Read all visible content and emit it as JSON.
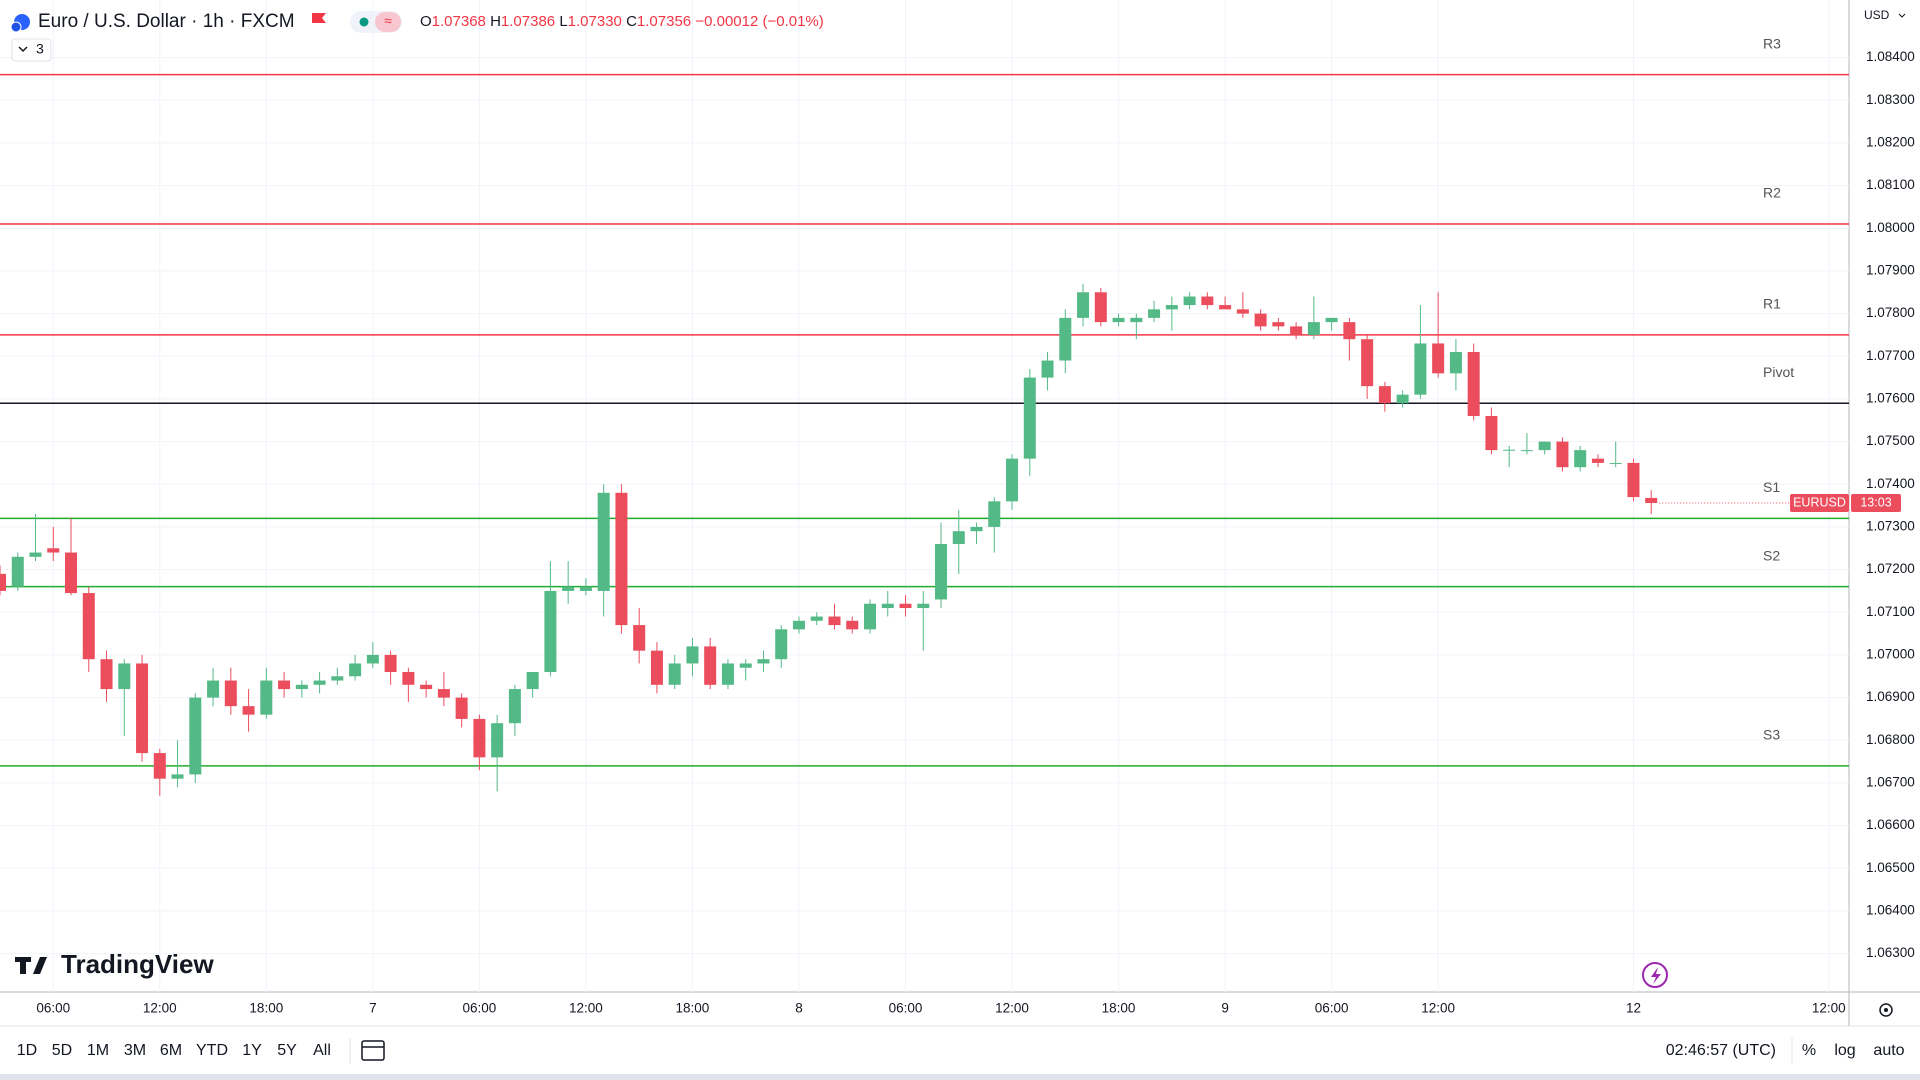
{
  "header": {
    "title": "Euro / U.S. Dollar · 1h · FXCM",
    "indicators": "3",
    "currency": "USD",
    "logo": "TradingView",
    "ohlc": [
      {
        "name": "O",
        "value": 1.07368,
        "label": "1.07368"
      },
      {
        "name": "H",
        "value": 1.07386,
        "label": "1.07386"
      },
      {
        "name": "L",
        "value": 1.0733,
        "label": "1.07330"
      },
      {
        "name": "C",
        "value": 1.07356,
        "label": "1.07356"
      }
    ],
    "change": {
      "value": -0.00012,
      "label": "−0.00012"
    },
    "change_pct": {
      "value": -0.01,
      "label": "(−0.01%)"
    }
  },
  "chart_data": {
    "type": "candlestick",
    "up_color": "#53b987",
    "down_color": "#eb4d5c",
    "grid": true,
    "categories": [
      null,
      null,
      null,
      "06:00",
      null,
      null,
      null,
      null,
      null,
      "12:00",
      null,
      null,
      null,
      null,
      null,
      "18:00",
      null,
      null,
      null,
      null,
      null,
      "7",
      null,
      null,
      null,
      null,
      null,
      "06:00",
      null,
      null,
      null,
      null,
      null,
      "12:00",
      null,
      null,
      null,
      null,
      null,
      "18:00",
      null,
      null,
      null,
      null,
      null,
      "8",
      null,
      null,
      null,
      null,
      null,
      "06:00",
      null,
      null,
      null,
      null,
      null,
      "12:00",
      null,
      null,
      null,
      null,
      null,
      "18:00",
      null,
      null,
      null,
      null,
      null,
      "9",
      null,
      null,
      null,
      null,
      null,
      "06:00",
      null,
      null,
      null,
      null,
      null,
      "12:00",
      null,
      null,
      null,
      null,
      null,
      null,
      null,
      null,
      null,
      null,
      "12",
      null,
      null,
      null,
      null,
      null,
      null,
      null,
      null,
      null,
      null,
      "12:00"
    ],
    "open": [
      1.0719,
      1.0716,
      1.0723,
      1.0725,
      1.0724,
      1.07145,
      1.0699,
      1.0692,
      1.0698,
      1.0677,
      1.0671,
      1.0672,
      1.069,
      1.0694,
      1.0688,
      1.0686,
      1.0694,
      1.0692,
      1.0693,
      1.0694,
      1.0695,
      1.0698,
      1.07,
      1.0696,
      1.0693,
      1.0692,
      1.069,
      1.0685,
      1.0676,
      1.0684,
      1.0692,
      1.0696,
      1.0715,
      1.0715,
      1.0715,
      1.0738,
      1.0707,
      1.0701,
      1.0693,
      1.0698,
      1.0702,
      1.0693,
      1.0697,
      1.0698,
      1.0699,
      1.0706,
      1.0708,
      1.0709,
      1.0708,
      1.0706,
      1.0711,
      1.0712,
      1.0711,
      1.0713,
      1.0726,
      1.0729,
      1.073,
      1.0736,
      1.0746,
      1.0765,
      1.0769,
      1.0779,
      1.0785,
      1.0778,
      1.0778,
      1.0779,
      1.0781,
      1.0782,
      1.0784,
      1.0782,
      1.0781,
      1.078,
      1.0778,
      1.0777,
      1.0775,
      1.0778,
      1.0778,
      1.0774,
      1.0763,
      1.0759,
      1.0761,
      1.0773,
      1.0766,
      1.0771,
      1.0756,
      1.0748,
      1.0748,
      1.0748,
      1.075,
      1.0744,
      1.0746,
      1.0745,
      1.0745,
      1.07368,
      null,
      null,
      null,
      null,
      null,
      null,
      null,
      null,
      null,
      null
    ],
    "high": [
      1.0721,
      1.0724,
      1.0733,
      1.073,
      1.0732,
      1.0716,
      1.0701,
      1.0699,
      1.07,
      1.0678,
      1.068,
      1.0691,
      1.0697,
      1.0697,
      1.0692,
      1.0697,
      1.0696,
      1.0694,
      1.0696,
      1.0697,
      1.07,
      1.0703,
      1.0701,
      1.0697,
      1.0694,
      1.0696,
      1.0691,
      1.0686,
      1.0686,
      1.0693,
      1.0696,
      1.0722,
      1.0722,
      1.0718,
      1.074,
      1.074,
      1.0711,
      1.0703,
      1.07,
      1.0704,
      1.0704,
      1.0699,
      1.0699,
      1.0701,
      1.0707,
      1.0709,
      1.071,
      1.0712,
      1.0709,
      1.0713,
      1.0715,
      1.0714,
      1.0715,
      1.0731,
      1.0734,
      1.0731,
      1.0737,
      1.0747,
      1.0767,
      1.0771,
      1.0781,
      1.0787,
      1.0786,
      1.078,
      1.078,
      1.0783,
      1.0784,
      1.0785,
      1.0785,
      1.0784,
      1.0785,
      1.0781,
      1.0779,
      1.0778,
      1.0784,
      1.0779,
      1.0779,
      1.0775,
      1.0764,
      1.0762,
      1.0782,
      1.0785,
      1.0774,
      1.0773,
      1.0758,
      1.0749,
      1.0752,
      1.075,
      1.0751,
      1.0749,
      1.0747,
      1.075,
      1.0746,
      1.07386,
      null,
      null,
      null,
      null,
      null,
      null,
      null,
      null,
      null,
      null
    ],
    "low": [
      1.0714,
      1.0715,
      1.0722,
      1.0722,
      1.0714,
      1.0696,
      1.0689,
      1.0681,
      1.0675,
      1.0667,
      1.0669,
      1.067,
      1.0688,
      1.0686,
      1.0682,
      1.0685,
      1.069,
      1.069,
      1.0691,
      1.0693,
      1.0694,
      1.0697,
      1.0693,
      1.0689,
      1.069,
      1.0688,
      1.0683,
      1.0673,
      1.0668,
      1.0681,
      1.069,
      1.0695,
      1.0712,
      1.0714,
      1.0709,
      1.0705,
      1.0698,
      1.0691,
      1.0692,
      1.0695,
      1.0692,
      1.0692,
      1.0694,
      1.0696,
      1.0697,
      1.0705,
      1.0707,
      1.0706,
      1.0705,
      1.0705,
      1.0709,
      1.0709,
      1.0701,
      1.0711,
      1.0719,
      1.0726,
      1.0724,
      1.0734,
      1.0742,
      1.0762,
      1.0766,
      1.0777,
      1.0777,
      1.0777,
      1.0774,
      1.0778,
      1.0776,
      1.0781,
      1.0781,
      1.0781,
      1.0779,
      1.0776,
      1.0776,
      1.0774,
      1.0774,
      1.0776,
      1.0769,
      1.076,
      1.0757,
      1.0758,
      1.076,
      1.0765,
      1.0762,
      1.0755,
      1.0747,
      1.0744,
      1.0747,
      1.0747,
      1.0743,
      1.0743,
      1.0744,
      1.0744,
      1.0736,
      1.0733,
      null,
      null,
      null,
      null,
      null,
      null,
      null,
      null,
      null,
      null
    ],
    "close": [
      1.0715,
      1.0723,
      1.0724,
      1.0724,
      1.07145,
      1.0699,
      1.0692,
      1.0698,
      1.0677,
      1.0671,
      1.0672,
      1.069,
      1.0694,
      1.0688,
      1.0686,
      1.0694,
      1.0692,
      1.0693,
      1.0694,
      1.0695,
      1.0698,
      1.07,
      1.0696,
      1.0693,
      1.0692,
      1.069,
      1.0685,
      1.0676,
      1.0684,
      1.0692,
      1.0696,
      1.0715,
      1.0716,
      1.0716,
      1.0738,
      1.0707,
      1.0701,
      1.0693,
      1.0698,
      1.0702,
      1.0693,
      1.0698,
      1.0698,
      1.0699,
      1.0706,
      1.0708,
      1.0709,
      1.0707,
      1.0706,
      1.0712,
      1.0712,
      1.0711,
      1.0712,
      1.0726,
      1.0729,
      1.073,
      1.0736,
      1.0746,
      1.0765,
      1.0769,
      1.0779,
      1.0785,
      1.0778,
      1.0779,
      1.0779,
      1.0781,
      1.0782,
      1.0784,
      1.0782,
      1.0781,
      1.078,
      1.0777,
      1.0777,
      1.0775,
      1.0778,
      1.0779,
      1.0774,
      1.0763,
      1.0759,
      1.0761,
      1.0773,
      1.0766,
      1.0771,
      1.0756,
      1.0748,
      1.07481,
      1.0748,
      1.075,
      1.0744,
      1.0748,
      1.0745,
      1.0745,
      1.0737,
      1.07356,
      null,
      null,
      null,
      null,
      null,
      null,
      null,
      null,
      null,
      null
    ],
    "levels": [
      {
        "name": "R3",
        "value": 1.0836,
        "color": "#f23645"
      },
      {
        "name": "R2",
        "value": 1.0801,
        "color": "#f23645"
      },
      {
        "name": "R1",
        "value": 1.0775,
        "color": "#f23645"
      },
      {
        "name": "Pivot",
        "value": 1.0759,
        "color": "#131722"
      },
      {
        "name": "S1",
        "value": 1.0732,
        "color": "#22ab2e"
      },
      {
        "name": "S2",
        "value": 1.0716,
        "color": "#22ab2e"
      },
      {
        "name": "S3",
        "value": 1.0674,
        "color": "#22ab2e"
      }
    ],
    "price_tag": {
      "symbol": "EURUSD",
      "countdown": "13:03"
    },
    "ylim": [
      1.0621,
      1.08535
    ],
    "yticks": [
      {
        "value": 1.063,
        "label": "1.06300"
      },
      {
        "value": 1.064,
        "label": "1.06400"
      },
      {
        "value": 1.065,
        "label": "1.06500"
      },
      {
        "value": 1.066,
        "label": "1.06600"
      },
      {
        "value": 1.067,
        "label": "1.06700"
      },
      {
        "value": 1.068,
        "label": "1.06800"
      },
      {
        "value": 1.069,
        "label": "1.06900"
      },
      {
        "value": 1.07,
        "label": "1.07000"
      },
      {
        "value": 1.071,
        "label": "1.07100"
      },
      {
        "value": 1.072,
        "label": "1.07200"
      },
      {
        "value": 1.073,
        "label": "1.07300"
      },
      {
        "value": 1.074,
        "label": "1.07400"
      },
      {
        "value": 1.075,
        "label": "1.07500"
      },
      {
        "value": 1.076,
        "label": "1.07600"
      },
      {
        "value": 1.077,
        "label": "1.07700"
      },
      {
        "value": 1.078,
        "label": "1.07800"
      },
      {
        "value": 1.079,
        "label": "1.07900"
      },
      {
        "value": 1.08,
        "label": "1.08000"
      },
      {
        "value": 1.081,
        "label": "1.08100"
      },
      {
        "value": 1.082,
        "label": "1.08200"
      },
      {
        "value": 1.083,
        "label": "1.08300"
      },
      {
        "value": 1.084,
        "label": "1.08400"
      }
    ]
  },
  "toolbar": {
    "ranges": [
      "1D",
      "5D",
      "1M",
      "3M",
      "6M",
      "YTD",
      "1Y",
      "5Y",
      "All"
    ],
    "clock": "02:46:57 (UTC)",
    "options": [
      "%",
      "log",
      "auto"
    ]
  }
}
